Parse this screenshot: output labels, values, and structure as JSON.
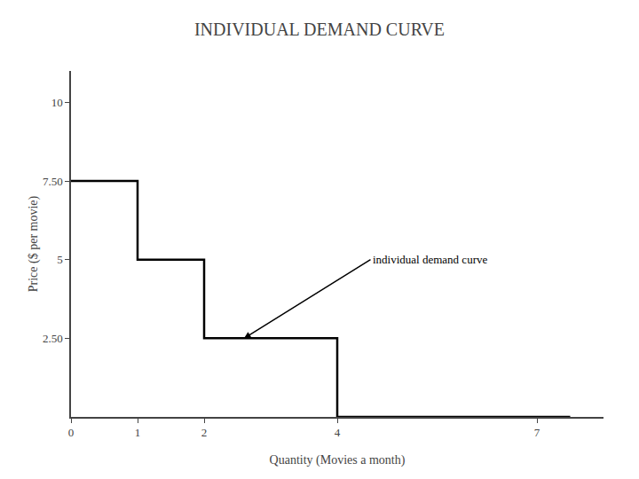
{
  "chart_data": {
    "type": "line",
    "title": "INDIVIDUAL DEMAND CURVE",
    "xlabel": "Quantity (Movies a month)",
    "ylabel": "Price ($ per movie)",
    "x": [
      0,
      1,
      1,
      2,
      2,
      4,
      4,
      7.5
    ],
    "values": [
      7.5,
      7.5,
      5.0,
      5.0,
      2.5,
      2.5,
      0,
      0
    ],
    "color": "#000000",
    "xlim": [
      0,
      8
    ],
    "ylim": [
      0,
      11
    ],
    "xticks": [
      0,
      1,
      2,
      4,
      7
    ],
    "yticks": [
      {
        "value": 2.5,
        "label": "2.50"
      },
      5,
      {
        "value": 7.5,
        "label": "7.50"
      },
      10
    ],
    "annotations": [
      {
        "text": "individual demand curve",
        "x": 2.6,
        "y": 2.5,
        "text_x": 4.5,
        "text_y": 5.0
      }
    ],
    "grid": false
  }
}
